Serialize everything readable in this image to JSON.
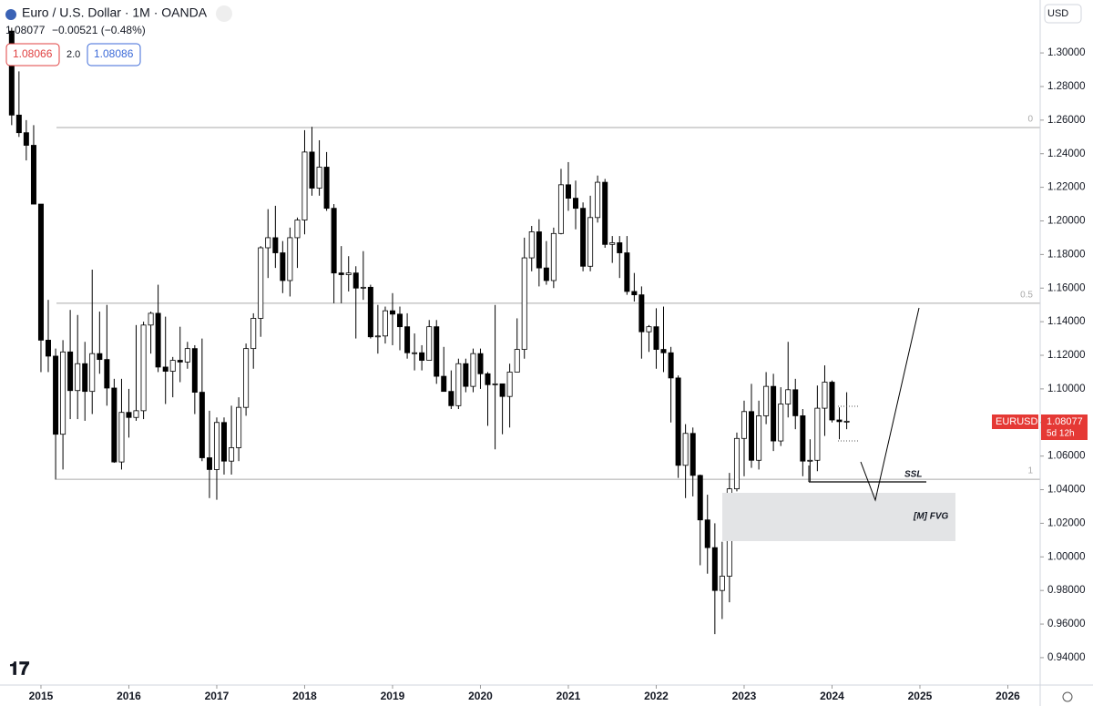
{
  "chart_data": {
    "type": "candlestick",
    "title": "Euro / U.S. Dollar · 1M · OANDA",
    "last_price": "1.08077",
    "change": "−0.00521 (−0.48%)",
    "bid": "1.08066",
    "spread": "2.0",
    "ask": "1.08086",
    "currency": "USD",
    "symbol": "EURUSD",
    "last_price_label": "1.08077",
    "countdown": "5d 12h",
    "fib_levels": [
      {
        "value": 1.2556,
        "label": "0"
      },
      {
        "value": 1.151,
        "label": "0.5"
      },
      {
        "value": 1.0462,
        "label": "1"
      }
    ],
    "annotations": [
      "SSL",
      "[M] FVG"
    ],
    "up_color": "#ffffff",
    "down_color": "#000000",
    "border_color": "#000000",
    "xlim": [
      2014.534,
      2026.368
    ],
    "xticks": [
      2015,
      2016,
      2017,
      2018,
      2019,
      2020,
      2021,
      2022,
      2023,
      2024,
      2025,
      2026
    ],
    "ylim": [
      0.9237,
      1.3315
    ],
    "yticks": [
      {
        "value": 0.94,
        "label": "0.94000"
      },
      {
        "value": 0.96,
        "label": "0.96000"
      },
      {
        "value": 0.98,
        "label": "0.98000"
      },
      {
        "value": 1.0,
        "label": "1.00000"
      },
      {
        "value": 1.02,
        "label": "1.02000"
      },
      {
        "value": 1.04,
        "label": "1.04000"
      },
      {
        "value": 1.06,
        "label": "1.06000"
      },
      {
        "value": 1.08,
        "label": "1.08000"
      },
      {
        "value": 1.1,
        "label": "1.10000"
      },
      {
        "value": 1.12,
        "label": "1.12000"
      },
      {
        "value": 1.14,
        "label": "1.14000"
      },
      {
        "value": 1.16,
        "label": "1.16000"
      },
      {
        "value": 1.18,
        "label": "1.18000"
      },
      {
        "value": 1.2,
        "label": "1.20000"
      },
      {
        "value": 1.22,
        "label": "1.22000"
      },
      {
        "value": 1.24,
        "label": "1.24000"
      },
      {
        "value": 1.26,
        "label": "1.26000"
      },
      {
        "value": 1.28,
        "label": "1.28000"
      },
      {
        "value": 1.3,
        "label": "1.30000"
      }
    ],
    "x": [
      2014.667,
      2014.75,
      2014.833,
      2014.917,
      2015,
      2015.083,
      2015.167,
      2015.25,
      2015.333,
      2015.417,
      2015.5,
      2015.583,
      2015.667,
      2015.75,
      2015.833,
      2015.917,
      2016,
      2016.083,
      2016.167,
      2016.25,
      2016.333,
      2016.417,
      2016.5,
      2016.583,
      2016.667,
      2016.75,
      2016.833,
      2016.917,
      2017,
      2017.083,
      2017.167,
      2017.25,
      2017.333,
      2017.417,
      2017.5,
      2017.583,
      2017.667,
      2017.75,
      2017.833,
      2017.917,
      2018,
      2018.083,
      2018.167,
      2018.25,
      2018.333,
      2018.417,
      2018.5,
      2018.583,
      2018.667,
      2018.75,
      2018.833,
      2018.917,
      2019,
      2019.083,
      2019.167,
      2019.25,
      2019.333,
      2019.417,
      2019.5,
      2019.583,
      2019.667,
      2019.75,
      2019.833,
      2019.917,
      2020,
      2020.083,
      2020.167,
      2020.25,
      2020.333,
      2020.417,
      2020.5,
      2020.583,
      2020.667,
      2020.75,
      2020.833,
      2020.917,
      2021,
      2021.083,
      2021.167,
      2021.25,
      2021.333,
      2021.417,
      2021.5,
      2021.583,
      2021.667,
      2021.75,
      2021.833,
      2021.917,
      2022,
      2022.083,
      2022.167,
      2022.25,
      2022.333,
      2022.417,
      2022.5,
      2022.583,
      2022.667,
      2022.75,
      2022.833,
      2022.917,
      2023,
      2023.083,
      2023.167,
      2023.25,
      2023.333,
      2023.417,
      2023.5,
      2023.583,
      2023.667,
      2023.75,
      2023.833,
      2023.917,
      2024,
      2024.083,
      2024.167
    ],
    "open": [
      1.313,
      1.263,
      1.2525,
      1.245,
      1.21,
      1.129,
      1.1195,
      1.073,
      1.122,
      1.099,
      1.115,
      1.0985,
      1.121,
      1.1175,
      1.1005,
      1.0565,
      1.086,
      1.083,
      1.087,
      1.138,
      1.145,
      1.113,
      1.1105,
      1.117,
      1.116,
      1.124,
      1.098,
      1.059,
      1.052,
      1.08,
      1.057,
      1.065,
      1.089,
      1.124,
      1.142,
      1.184,
      1.19,
      1.181,
      1.1645,
      1.19,
      1.2005,
      1.241,
      1.2195,
      1.232,
      1.2075,
      1.169,
      1.168,
      1.169,
      1.16,
      1.1605,
      1.131,
      1.1315,
      1.1465,
      1.1445,
      1.137,
      1.1215,
      1.1215,
      1.117,
      1.137,
      1.1075,
      1.0985,
      1.09,
      1.115,
      1.1015,
      1.121,
      1.109,
      1.1025,
      1.103,
      1.0955,
      1.11,
      1.1235,
      1.178,
      1.1935,
      1.172,
      1.1645,
      1.1925,
      1.2215,
      1.2135,
      1.2075,
      1.173,
      1.202,
      1.223,
      1.186,
      1.187,
      1.181,
      1.158,
      1.156,
      1.134,
      1.137,
      1.1235,
      1.1215,
      1.1065,
      1.0545,
      1.0735,
      1.0485,
      1.022,
      1.0055,
      0.98,
      0.9885,
      1.0405,
      1.0705,
      1.0865,
      1.0575,
      1.084,
      1.1015,
      1.069,
      1.091,
      1.0995,
      1.084,
      1.057,
      1.0575,
      1.0885,
      1.104,
      1.0815,
      1.0805
    ],
    "high": [
      1.315,
      1.289,
      1.26,
      1.257,
      1.21,
      1.153,
      1.124,
      1.129,
      1.147,
      1.144,
      1.128,
      1.171,
      1.146,
      1.15,
      1.106,
      1.106,
      1.1,
      1.138,
      1.14,
      1.146,
      1.162,
      1.143,
      1.119,
      1.137,
      1.128,
      1.126,
      1.13,
      1.087,
      1.083,
      1.083,
      1.09,
      1.095,
      1.127,
      1.145,
      1.185,
      1.207,
      1.209,
      1.188,
      1.196,
      1.202,
      1.254,
      1.256,
      1.248,
      1.241,
      1.21,
      1.185,
      1.179,
      1.173,
      1.182,
      1.162,
      1.15,
      1.149,
      1.157,
      1.149,
      1.145,
      1.133,
      1.126,
      1.141,
      1.141,
      1.125,
      1.111,
      1.118,
      1.118,
      1.124,
      1.124,
      1.11,
      1.15,
      1.102,
      1.115,
      1.142,
      1.19,
      1.197,
      1.201,
      1.188,
      1.196,
      1.231,
      1.235,
      1.224,
      1.211,
      1.215,
      1.227,
      1.225,
      1.191,
      1.191,
      1.191,
      1.169,
      1.161,
      1.138,
      1.148,
      1.149,
      1.125,
      1.108,
      1.079,
      1.077,
      1.049,
      1.037,
      1.02,
      1.009,
      1.05,
      1.074,
      1.093,
      1.103,
      1.093,
      1.11,
      1.109,
      1.101,
      1.128,
      1.106,
      1.088,
      1.07,
      1.102,
      1.114,
      1.105,
      1.089,
      1.098
    ],
    "low": [
      1.257,
      1.25,
      1.236,
      1.21,
      1.11,
      1.11,
      1.046,
      1.052,
      1.082,
      1.082,
      1.081,
      1.085,
      1.109,
      1.09,
      1.056,
      1.052,
      1.071,
      1.081,
      1.082,
      1.121,
      1.11,
      1.091,
      1.095,
      1.104,
      1.112,
      1.085,
      1.057,
      1.035,
      1.034,
      1.049,
      1.049,
      1.057,
      1.084,
      1.112,
      1.131,
      1.166,
      1.172,
      1.157,
      1.155,
      1.172,
      1.192,
      1.215,
      1.215,
      1.206,
      1.151,
      1.151,
      1.158,
      1.13,
      1.153,
      1.13,
      1.121,
      1.127,
      1.126,
      1.123,
      1.118,
      1.111,
      1.111,
      1.118,
      1.103,
      1.0985,
      1.088,
      1.088,
      1.098,
      1.098,
      1.1,
      1.078,
      1.064,
      1.073,
      1.077,
      1.11,
      1.118,
      1.17,
      1.161,
      1.162,
      1.16,
      1.192,
      1.206,
      1.195,
      1.17,
      1.17,
      1.199,
      1.184,
      1.175,
      1.166,
      1.156,
      1.152,
      1.118,
      1.122,
      1.112,
      1.11,
      1.08,
      1.047,
      1.035,
      1.036,
      0.995,
      0.99,
      0.954,
      0.963,
      0.973,
      1.039,
      1.048,
      1.053,
      1.052,
      1.079,
      1.063,
      1.066,
      1.083,
      1.076,
      1.048,
      1.045,
      1.051,
      1.072,
      1.08,
      1.07,
      1.076
    ],
    "close": [
      1.263,
      1.2525,
      1.245,
      1.21,
      1.129,
      1.1195,
      1.073,
      1.122,
      1.099,
      1.115,
      1.0985,
      1.121,
      1.1175,
      1.1005,
      1.0565,
      1.086,
      1.083,
      1.087,
      1.138,
      1.145,
      1.113,
      1.1105,
      1.117,
      1.116,
      1.124,
      1.098,
      1.059,
      1.052,
      1.08,
      1.057,
      1.065,
      1.089,
      1.124,
      1.142,
      1.184,
      1.19,
      1.181,
      1.1645,
      1.19,
      1.2005,
      1.241,
      1.2195,
      1.232,
      1.2075,
      1.169,
      1.168,
      1.169,
      1.16,
      1.1605,
      1.131,
      1.1315,
      1.1465,
      1.1445,
      1.137,
      1.1215,
      1.1215,
      1.117,
      1.137,
      1.1075,
      1.0985,
      1.09,
      1.115,
      1.1015,
      1.121,
      1.109,
      1.1025,
      1.103,
      1.0955,
      1.11,
      1.1235,
      1.178,
      1.1935,
      1.172,
      1.1645,
      1.1925,
      1.2215,
      1.2135,
      1.2075,
      1.173,
      1.202,
      1.223,
      1.186,
      1.187,
      1.181,
      1.158,
      1.156,
      1.134,
      1.137,
      1.1235,
      1.1215,
      1.1065,
      1.0545,
      1.0735,
      1.0485,
      1.022,
      1.0055,
      0.98,
      0.9885,
      1.0405,
      1.0705,
      1.0865,
      1.0575,
      1.084,
      1.1015,
      1.069,
      1.091,
      1.0995,
      1.084,
      1.057,
      1.0575,
      1.0885,
      1.104,
      1.0815,
      1.0805,
      1.08077
    ]
  }
}
